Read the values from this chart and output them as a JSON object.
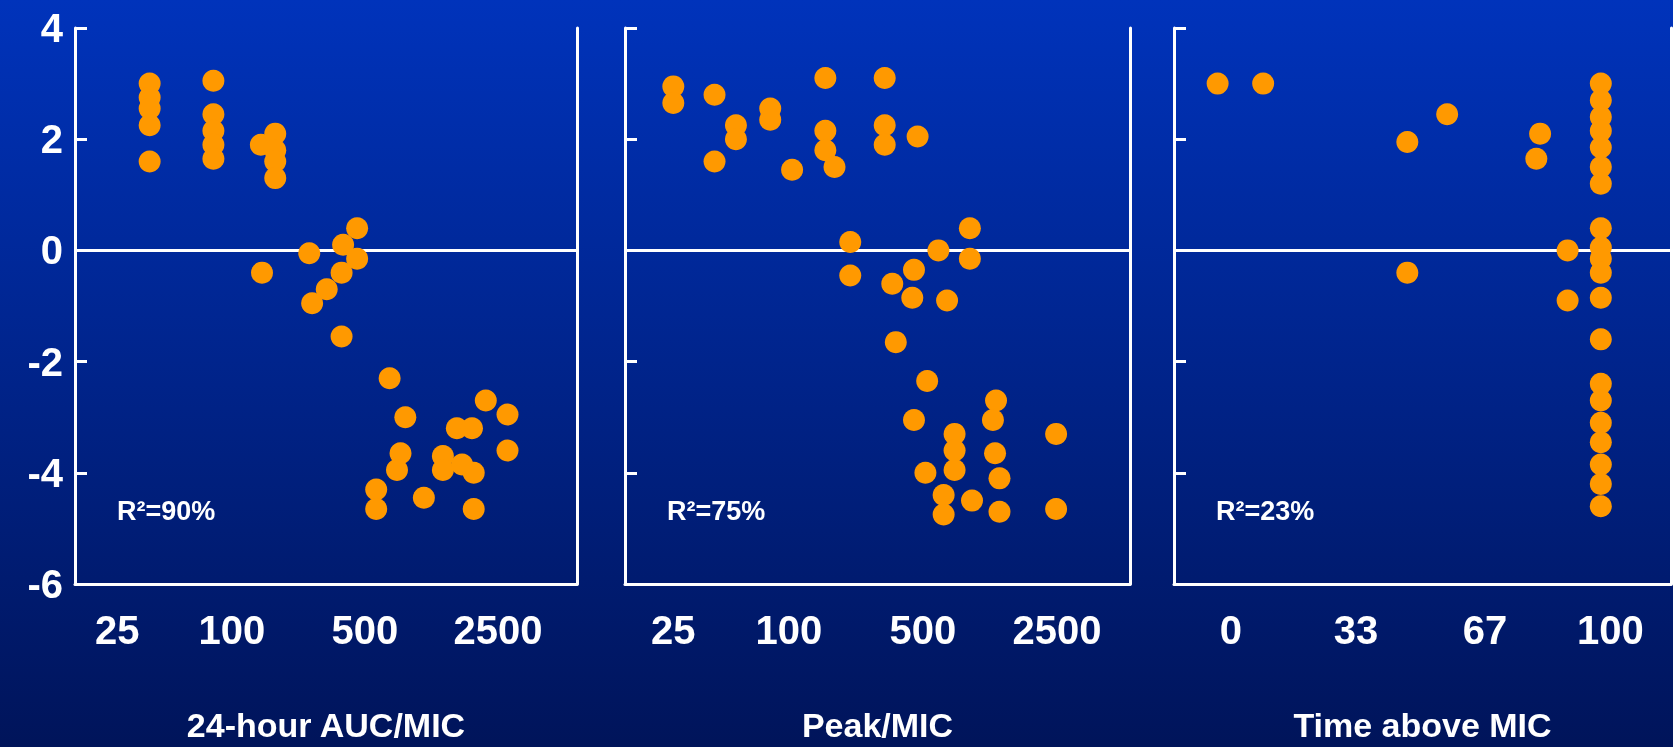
{
  "chart_data": [
    {
      "type": "scatter",
      "xlabel": "24-hour AUC/MIC",
      "annotations": [
        "R²=90%"
      ],
      "log": "x",
      "grid": false,
      "marker": "circle",
      "color": "#ff9900",
      "xlim": [
        15,
        6500
      ],
      "ylim": [
        -6,
        4
      ],
      "xticks": [
        25,
        100,
        500,
        2500
      ],
      "yticks": [
        -6,
        -4,
        -2,
        0,
        2,
        4
      ],
      "ref_lines": [
        {
          "axis": "y",
          "value": 0
        }
      ],
      "x": [
        37,
        37,
        37,
        37,
        37,
        80,
        80,
        80,
        80,
        80,
        142,
        169,
        169,
        169,
        169,
        144,
        255,
        264,
        315,
        384,
        377,
        455,
        455,
        377,
        674,
        815,
        769,
        737,
        573,
        573,
        1020,
        1284,
        1284,
        1520,
        1825,
        1619,
        1864,
        1864,
        2157,
        2805,
        2805
      ],
      "values": [
        3.0,
        2.75,
        2.55,
        2.25,
        1.6,
        3.05,
        2.45,
        2.15,
        1.9,
        1.65,
        1.9,
        2.1,
        1.8,
        1.6,
        1.3,
        -0.4,
        -0.05,
        -0.95,
        -0.7,
        0.1,
        -0.4,
        0.4,
        -0.15,
        -1.55,
        -2.3,
        -3.0,
        -3.65,
        -3.95,
        -4.3,
        -4.65,
        -4.45,
        -3.7,
        -3.95,
        -3.2,
        -3.2,
        -3.85,
        -4.0,
        -4.65,
        -2.7,
        -2.95,
        -3.6
      ]
    },
    {
      "type": "scatter",
      "xlabel": "Peak/MIC",
      "annotations": [
        "R²=75%"
      ],
      "log": "x",
      "grid": false,
      "marker": "circle",
      "color": "#ff9900",
      "tick_labels": "x",
      "xlim": [
        14,
        6000
      ],
      "ylim": [
        -6,
        4
      ],
      "xticks": [
        25,
        100,
        500,
        2500
      ],
      "yticks": [
        -6,
        -4,
        -2,
        0,
        2,
        4
      ],
      "ref_lines": [
        {
          "axis": "y",
          "value": 0
        }
      ],
      "x": [
        25,
        25,
        41,
        53,
        53,
        41,
        80,
        80,
        104,
        155,
        155,
        155,
        173,
        316,
        316,
        316,
        469,
        209,
        209,
        346,
        449,
        440,
        602,
        668,
        878,
        878,
        361,
        526,
        449,
        731,
        731,
        731,
        515,
        1202,
        1158,
        1188,
        1253,
        641,
        641,
        901,
        1253,
        2472,
        2472
      ],
      "values": [
        2.95,
        2.65,
        2.8,
        2.25,
        2.0,
        1.6,
        2.55,
        2.35,
        1.45,
        3.1,
        2.15,
        1.8,
        1.5,
        3.1,
        2.25,
        1.9,
        2.05,
        0.15,
        -0.45,
        -0.6,
        -0.35,
        -0.85,
        0.0,
        -0.9,
        0.4,
        -0.15,
        -1.65,
        -2.35,
        -3.05,
        -3.3,
        -3.6,
        -3.95,
        -4.0,
        -2.7,
        -3.05,
        -3.65,
        -4.1,
        -4.4,
        -4.75,
        -4.5,
        -4.7,
        -3.3,
        -4.65
      ]
    },
    {
      "type": "scatter",
      "xlabel": "Time above MIC",
      "annotations": [
        "R²=23%"
      ],
      "grid": false,
      "marker": "circle",
      "color": "#ff9900",
      "tick_labels": "x",
      "xlim": [
        -15,
        116
      ],
      "ylim": [
        -6,
        4
      ],
      "xticks": [
        0,
        33,
        67,
        100
      ],
      "yticks": [
        -6,
        -4,
        -2,
        0,
        2,
        4
      ],
      "ref_lines": [
        {
          "axis": "y",
          "value": 0
        }
      ],
      "x": [
        -3.5,
        8.5,
        46.5,
        46.5,
        57,
        81.5,
        80.5,
        88.75,
        88.75,
        97.5,
        97.5,
        97.5,
        97.5,
        97.5,
        97.5,
        97.5,
        97.5,
        97.5,
        97.5,
        97.5,
        97.5,
        97.5,
        97.5,
        97.5,
        97.5,
        97.5,
        97.5,
        97.5,
        97.5
      ],
      "values": [
        3.0,
        3.0,
        1.95,
        -0.4,
        2.45,
        2.1,
        1.65,
        0.0,
        -0.9,
        3.0,
        2.7,
        2.4,
        2.15,
        1.85,
        1.5,
        1.2,
        0.4,
        0.05,
        -0.15,
        -0.4,
        -0.85,
        -1.6,
        -2.4,
        -2.7,
        -3.1,
        -3.45,
        -3.85,
        -4.2,
        -4.6
      ]
    }
  ]
}
